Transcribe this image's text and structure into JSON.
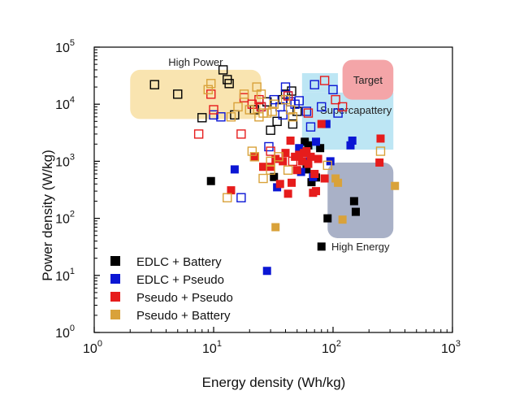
{
  "chart_data": {
    "type": "scatter",
    "xscale": "log",
    "yscale": "log",
    "xlim": [
      1,
      1000
    ],
    "ylim": [
      1,
      100000
    ],
    "xlabel": "Energy density (Wh/kg)",
    "ylabel": "Power density (W/kg)",
    "xticks": [
      {
        "value": 1,
        "base": "10",
        "exp": "0"
      },
      {
        "value": 10,
        "base": "10",
        "exp": "1"
      },
      {
        "value": 100,
        "base": "10",
        "exp": "2"
      },
      {
        "value": 1000,
        "base": "10",
        "exp": "3"
      }
    ],
    "yticks": [
      {
        "value": 1,
        "base": "10",
        "exp": "0"
      },
      {
        "value": 10,
        "base": "10",
        "exp": "1"
      },
      {
        "value": 100,
        "base": "10",
        "exp": "2"
      },
      {
        "value": 1000,
        "base": "10",
        "exp": "3"
      },
      {
        "value": 10000,
        "base": "10",
        "exp": "4"
      },
      {
        "value": 100000,
        "base": "10",
        "exp": "5"
      }
    ],
    "regions": [
      {
        "label": "High Power",
        "x": [
          2,
          25
        ],
        "y": [
          5500,
          40000
        ],
        "color": "#f9e4b0",
        "text_color": "#222222",
        "label_pos": "above"
      },
      {
        "label": "Supercapattery",
        "x": [
          55,
          320
        ],
        "y": [
          1600,
          16000
        ],
        "color": "#bde6f4",
        "text_color": "#222222",
        "label_pos": "inside-right"
      },
      {
        "label": "",
        "x": [
          55,
          110
        ],
        "y": [
          16000,
          35000
        ],
        "color": "#bde6f4",
        "text_color": "#222222",
        "label_pos": "none"
      },
      {
        "label": "Target",
        "x": [
          120,
          320
        ],
        "y": [
          12000,
          60000
        ],
        "color": "#f4a5a8",
        "text_color": "#c0392b",
        "label_pos": "center"
      },
      {
        "label": "High Energy",
        "x": [
          90,
          320
        ],
        "y": [
          45,
          950
        ],
        "color": "#a9b1c7",
        "text_color": "#222222",
        "label_pos": "below"
      }
    ],
    "series": [
      {
        "name": "EDLC + Battery",
        "color": "#000000",
        "filled": [
          [
            9.5,
            450
          ],
          [
            32,
            530
          ],
          [
            58,
            2200
          ],
          [
            62,
            1900
          ],
          [
            78,
            1700
          ],
          [
            60,
            720
          ],
          [
            70,
            550
          ],
          [
            72,
            520
          ],
          [
            66,
            430
          ],
          [
            150,
            200
          ],
          [
            155,
            130
          ],
          [
            90,
            100
          ],
          [
            80,
            32
          ]
        ],
        "open": [
          [
            3.2,
            22000
          ],
          [
            5,
            15000
          ],
          [
            8,
            5800
          ],
          [
            12,
            40000
          ],
          [
            13,
            27000
          ],
          [
            13.5,
            23000
          ],
          [
            15,
            6500
          ],
          [
            22,
            8000
          ],
          [
            28,
            11000
          ],
          [
            30,
            3500
          ],
          [
            34,
            5000
          ],
          [
            38,
            12000
          ],
          [
            40,
            15000
          ],
          [
            45,
            17000
          ],
          [
            46,
            4500
          ],
          [
            50,
            7500
          ]
        ]
      },
      {
        "name": "EDLC + Pseudo",
        "color": "#0b16d4",
        "filled": [
          [
            15,
            720
          ],
          [
            28,
            12
          ],
          [
            34,
            350
          ],
          [
            52,
            1700
          ],
          [
            54,
            650
          ],
          [
            62,
            1000
          ],
          [
            68,
            530
          ],
          [
            72,
            2200
          ],
          [
            88,
            4500
          ],
          [
            95,
            1000
          ],
          [
            140,
            1900
          ],
          [
            145,
            2300
          ]
        ],
        "open": [
          [
            10,
            6500
          ],
          [
            11.5,
            6000
          ],
          [
            17,
            230
          ],
          [
            25,
            9000
          ],
          [
            29,
            1800
          ],
          [
            32,
            12000
          ],
          [
            36,
            9000
          ],
          [
            38,
            6500
          ],
          [
            40,
            20000
          ],
          [
            42,
            14000
          ],
          [
            44,
            11000
          ],
          [
            48,
            10000
          ],
          [
            52,
            11500
          ],
          [
            60,
            7500
          ],
          [
            70,
            22000
          ],
          [
            80,
            9000
          ],
          [
            100,
            18000
          ],
          [
            110,
            7000
          ],
          [
            65,
            4000
          ]
        ]
      },
      {
        "name": "Pseudo + Pseudo",
        "color": "#e61c1c",
        "filled": [
          [
            14,
            310
          ],
          [
            22,
            1200
          ],
          [
            26,
            800
          ],
          [
            30,
            800
          ],
          [
            33,
            1100
          ],
          [
            36,
            400
          ],
          [
            38,
            1000
          ],
          [
            40,
            1400
          ],
          [
            42,
            270
          ],
          [
            44,
            2300
          ],
          [
            45,
            420
          ],
          [
            48,
            1200
          ],
          [
            50,
            700
          ],
          [
            52,
            1300
          ],
          [
            55,
            1000
          ],
          [
            57,
            1400
          ],
          [
            60,
            1500
          ],
          [
            62,
            900
          ],
          [
            65,
            1200
          ],
          [
            68,
            280
          ],
          [
            70,
            600
          ],
          [
            72,
            300
          ],
          [
            75,
            1100
          ],
          [
            80,
            4500
          ],
          [
            245,
            950
          ],
          [
            250,
            2500
          ],
          [
            85,
            500
          ]
        ],
        "open": [
          [
            7.5,
            3000
          ],
          [
            9.5,
            15000
          ],
          [
            10,
            8000
          ],
          [
            17,
            3000
          ],
          [
            18,
            13000
          ],
          [
            21,
            10000
          ],
          [
            24,
            12000
          ],
          [
            25,
            9000
          ],
          [
            30,
            1500
          ],
          [
            42,
            14000
          ],
          [
            46,
            1000
          ],
          [
            62,
            7000
          ],
          [
            85,
            26000
          ],
          [
            105,
            12000
          ],
          [
            120,
            9000
          ]
        ]
      },
      {
        "name": "Pseudo + Battery",
        "color": "#d9a23a",
        "filled": [
          [
            33,
            70
          ],
          [
            105,
            500
          ],
          [
            110,
            420
          ],
          [
            120,
            95
          ],
          [
            330,
            370
          ]
        ],
        "open": [
          [
            9,
            18000
          ],
          [
            9.5,
            23000
          ],
          [
            13,
            230
          ],
          [
            14,
            6000
          ],
          [
            16,
            9000
          ],
          [
            18,
            15000
          ],
          [
            20,
            8000
          ],
          [
            21,
            1500
          ],
          [
            22,
            1200
          ],
          [
            23,
            20000
          ],
          [
            24,
            6000
          ],
          [
            25,
            15000
          ],
          [
            26,
            7000
          ],
          [
            28,
            7000
          ],
          [
            30,
            1000
          ],
          [
            31,
            7500
          ],
          [
            32,
            10000
          ],
          [
            35,
            1200
          ],
          [
            40,
            12000
          ],
          [
            44,
            8000
          ],
          [
            46,
            6000
          ],
          [
            26,
            500
          ],
          [
            42,
            700
          ],
          [
            30,
            700
          ],
          [
            250,
            1500
          ],
          [
            90,
            850
          ]
        ]
      }
    ],
    "legend": {
      "position": "bottom-left",
      "entries": [
        "EDLC + Battery",
        "EDLC + Pseudo",
        "Pseudo + Pseudo",
        "Pseudo + Battery"
      ]
    }
  }
}
